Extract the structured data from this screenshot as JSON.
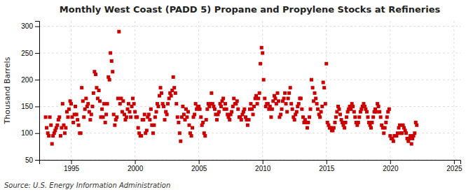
{
  "chart_data": {
    "type": "scatter",
    "title": "Monthly West Coast (PADD 5) Propane and Propylene Stocks at Refineries",
    "y_label": "Thousand Barrels",
    "annotation": "Source: U.S. Energy Information Administration",
    "color": "#cc0000",
    "marker": "square",
    "grid": true,
    "xlim": [
      1992.5,
      2025.5
    ],
    "ylim": [
      50,
      310
    ],
    "xticks": [
      1995,
      2000,
      2005,
      2010,
      2015,
      2020,
      2025
    ],
    "yticks": [
      50,
      100,
      150,
      200,
      250,
      300
    ],
    "x": [
      1993.0,
      1993.08,
      1993.17,
      1993.25,
      1993.33,
      1993.42,
      1993.5,
      1993.58,
      1993.67,
      1993.75,
      1993.83,
      1993.92,
      1994.0,
      1994.08,
      1994.17,
      1994.25,
      1994.33,
      1994.42,
      1994.5,
      1994.58,
      1994.67,
      1994.75,
      1994.83,
      1994.92,
      1995.0,
      1995.08,
      1995.17,
      1995.25,
      1995.33,
      1995.42,
      1995.5,
      1995.58,
      1995.67,
      1995.75,
      1995.83,
      1995.92,
      1996.0,
      1996.08,
      1996.17,
      1996.25,
      1996.33,
      1996.42,
      1996.5,
      1996.58,
      1996.67,
      1996.75,
      1996.83,
      1996.92,
      1997.0,
      1997.08,
      1997.17,
      1997.25,
      1997.33,
      1997.42,
      1997.5,
      1997.58,
      1997.67,
      1997.75,
      1997.83,
      1997.92,
      1998.0,
      1998.08,
      1998.17,
      1998.25,
      1998.33,
      1998.42,
      1998.5,
      1998.58,
      1998.67,
      1998.75,
      1998.83,
      1998.92,
      1999.0,
      1999.08,
      1999.17,
      1999.25,
      1999.33,
      1999.42,
      1999.5,
      1999.58,
      1999.67,
      1999.75,
      1999.83,
      1999.92,
      2000.0,
      2000.08,
      2000.17,
      2000.25,
      2000.33,
      2000.42,
      2000.5,
      2000.58,
      2000.67,
      2000.75,
      2000.83,
      2000.92,
      2001.0,
      2001.08,
      2001.17,
      2001.25,
      2001.33,
      2001.42,
      2001.5,
      2001.58,
      2001.67,
      2001.75,
      2001.83,
      2001.92,
      2002.0,
      2002.08,
      2002.17,
      2002.25,
      2002.33,
      2002.42,
      2002.5,
      2002.58,
      2002.67,
      2002.75,
      2002.83,
      2002.92,
      2003.0,
      2003.08,
      2003.17,
      2003.25,
      2003.33,
      2003.42,
      2003.5,
      2003.58,
      2003.67,
      2003.75,
      2003.83,
      2003.92,
      2004.0,
      2004.08,
      2004.17,
      2004.25,
      2004.33,
      2004.42,
      2004.5,
      2004.58,
      2004.67,
      2004.75,
      2004.83,
      2004.92,
      2005.0,
      2005.08,
      2005.17,
      2005.25,
      2005.33,
      2005.42,
      2005.5,
      2005.58,
      2005.67,
      2005.75,
      2005.83,
      2005.92,
      2006.0,
      2006.08,
      2006.17,
      2006.25,
      2006.33,
      2006.42,
      2006.5,
      2006.58,
      2006.67,
      2006.75,
      2006.83,
      2006.92,
      2007.0,
      2007.08,
      2007.17,
      2007.25,
      2007.33,
      2007.42,
      2007.5,
      2007.58,
      2007.67,
      2007.75,
      2007.83,
      2007.92,
      2008.0,
      2008.08,
      2008.17,
      2008.25,
      2008.33,
      2008.42,
      2008.5,
      2008.58,
      2008.67,
      2008.75,
      2008.83,
      2008.92,
      2009.0,
      2009.08,
      2009.17,
      2009.25,
      2009.33,
      2009.42,
      2009.5,
      2009.58,
      2009.67,
      2009.75,
      2009.83,
      2009.92,
      2010.0,
      2010.08,
      2010.17,
      2010.25,
      2010.33,
      2010.42,
      2010.5,
      2010.58,
      2010.67,
      2010.75,
      2010.83,
      2010.92,
      2011.0,
      2011.08,
      2011.17,
      2011.25,
      2011.33,
      2011.42,
      2011.5,
      2011.58,
      2011.67,
      2011.75,
      2011.83,
      2011.92,
      2012.0,
      2012.08,
      2012.17,
      2012.25,
      2012.33,
      2012.42,
      2012.5,
      2012.58,
      2012.67,
      2012.75,
      2012.83,
      2012.92,
      2013.0,
      2013.08,
      2013.17,
      2013.25,
      2013.33,
      2013.42,
      2013.5,
      2013.58,
      2013.67,
      2013.75,
      2013.83,
      2013.92,
      2014.0,
      2014.08,
      2014.17,
      2014.25,
      2014.33,
      2014.42,
      2014.5,
      2014.58,
      2014.67,
      2014.75,
      2014.83,
      2014.92,
      2015.0,
      2015.08,
      2015.17,
      2015.25,
      2015.33,
      2015.42,
      2015.5,
      2015.58,
      2015.67,
      2015.75,
      2015.83,
      2015.92,
      2016.0,
      2016.08,
      2016.17,
      2016.25,
      2016.33,
      2016.42,
      2016.5,
      2016.58,
      2016.67,
      2016.75,
      2016.83,
      2016.92,
      2017.0,
      2017.08,
      2017.17,
      2017.25,
      2017.33,
      2017.42,
      2017.5,
      2017.58,
      2017.67,
      2017.75,
      2017.83,
      2017.92,
      2018.0,
      2018.08,
      2018.17,
      2018.25,
      2018.33,
      2018.42,
      2018.5,
      2018.58,
      2018.67,
      2018.75,
      2018.83,
      2018.92,
      2019.0,
      2019.08,
      2019.17,
      2019.25,
      2019.33,
      2019.42,
      2019.5,
      2019.58,
      2019.67,
      2019.75,
      2019.83,
      2019.92,
      2020.0,
      2020.08,
      2020.17,
      2020.25,
      2020.33,
      2020.42,
      2020.5,
      2020.58,
      2020.67,
      2020.75,
      2020.83,
      2020.92,
      2021.0,
      2021.08,
      2021.17,
      2021.25,
      2021.33,
      2021.42,
      2021.5,
      2021.58,
      2021.67,
      2021.75,
      2021.83,
      2021.92,
      2022.0,
      2022.08
    ],
    "values": [
      130,
      110,
      100,
      95,
      130,
      115,
      80,
      95,
      100,
      105,
      110,
      115,
      125,
      130,
      95,
      110,
      155,
      115,
      100,
      110,
      140,
      130,
      145,
      160,
      155,
      130,
      120,
      135,
      150,
      135,
      125,
      115,
      100,
      100,
      185,
      160,
      130,
      145,
      165,
      150,
      155,
      140,
      125,
      135,
      150,
      175,
      215,
      210,
      185,
      165,
      180,
      160,
      130,
      145,
      130,
      155,
      120,
      135,
      155,
      205,
      200,
      250,
      235,
      215,
      135,
      115,
      125,
      130,
      165,
      290,
      155,
      165,
      140,
      160,
      135,
      125,
      130,
      145,
      155,
      140,
      130,
      150,
      165,
      155,
      140,
      130,
      130,
      110,
      100,
      95,
      95,
      125,
      125,
      135,
      100,
      105,
      130,
      135,
      125,
      145,
      115,
      100,
      115,
      130,
      140,
      155,
      150,
      170,
      185,
      175,
      155,
      150,
      125,
      140,
      135,
      155,
      165,
      175,
      170,
      180,
      205,
      185,
      175,
      155,
      130,
      120,
      100,
      85,
      130,
      150,
      135,
      125,
      145,
      130,
      140,
      115,
      100,
      95,
      110,
      130,
      135,
      155,
      145,
      150,
      150,
      145,
      130,
      115,
      120,
      100,
      95,
      125,
      145,
      155,
      150,
      155,
      175,
      155,
      150,
      145,
      135,
      125,
      135,
      140,
      155,
      150,
      160,
      165,
      145,
      155,
      145,
      135,
      130,
      125,
      135,
      140,
      150,
      165,
      155,
      155,
      160,
      145,
      130,
      130,
      125,
      135,
      140,
      145,
      130,
      125,
      115,
      125,
      145,
      155,
      145,
      135,
      150,
      165,
      170,
      155,
      165,
      175,
      230,
      260,
      250,
      200,
      165,
      150,
      155,
      155,
      145,
      150,
      130,
      145,
      160,
      170,
      165,
      155,
      175,
      160,
      130,
      135,
      145,
      160,
      165,
      175,
      155,
      140,
      165,
      175,
      185,
      155,
      145,
      130,
      125,
      135,
      140,
      150,
      155,
      165,
      165,
      145,
      130,
      120,
      125,
      120,
      110,
      120,
      130,
      145,
      200,
      185,
      160,
      175,
      165,
      155,
      145,
      135,
      130,
      140,
      150,
      195,
      185,
      155,
      230,
      120,
      115,
      110,
      110,
      105,
      105,
      110,
      120,
      130,
      140,
      150,
      145,
      135,
      125,
      120,
      115,
      110,
      120,
      130,
      140,
      145,
      150,
      145,
      155,
      150,
      140,
      130,
      120,
      115,
      120,
      130,
      140,
      145,
      150,
      155,
      150,
      145,
      140,
      130,
      120,
      115,
      110,
      120,
      130,
      140,
      145,
      140,
      155,
      150,
      140,
      130,
      115,
      110,
      100,
      110,
      120,
      130,
      140,
      145,
      95,
      90,
      90,
      85,
      95,
      95,
      95,
      100,
      110,
      115,
      100,
      100,
      115,
      110,
      105,
      100,
      90,
      85,
      90,
      95,
      80,
      90,
      95,
      100,
      120,
      115
    ]
  }
}
